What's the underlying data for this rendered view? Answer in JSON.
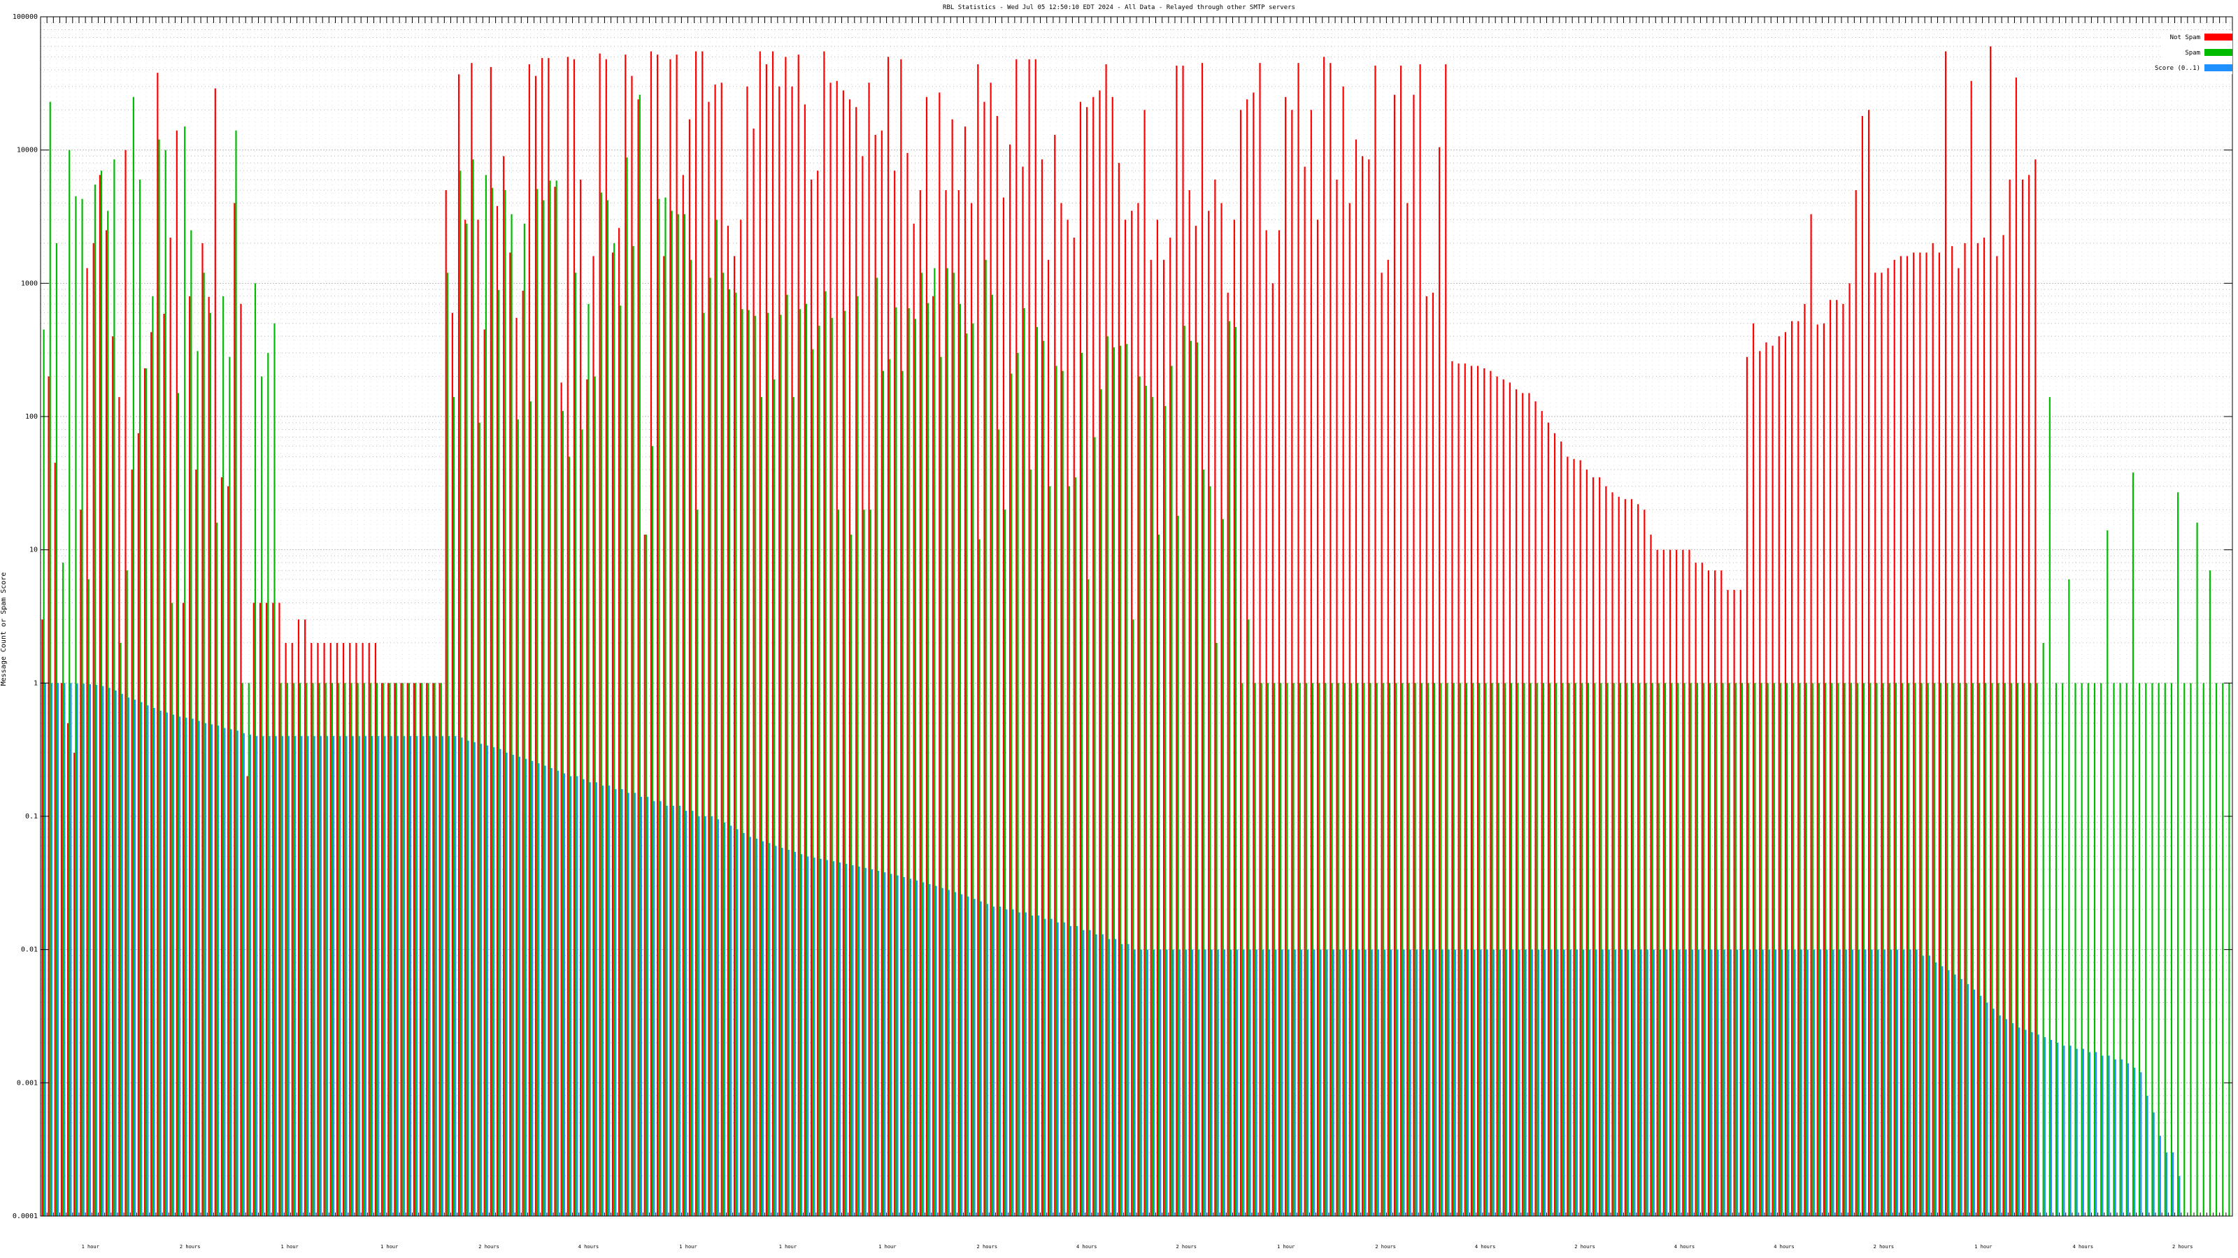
{
  "chart_data": {
    "type": "bar",
    "title": "RBL Statistics - Wed Jul 05 12:50:10 EDT 2024 - All Data - Relayed through other SMTP servers",
    "xlabel": "",
    "ylabel": "Message Count or Spam Score",
    "scale": "log",
    "ylim": [
      0.0001,
      100000
    ],
    "yticks": [
      {
        "value": 100000,
        "label": "100000"
      },
      {
        "value": 10000,
        "label": "10000"
      },
      {
        "value": 1000,
        "label": "1000"
      },
      {
        "value": 100,
        "label": "100"
      },
      {
        "value": 10,
        "label": "10"
      },
      {
        "value": 1,
        "label": "1"
      },
      {
        "value": 0.1,
        "label": "0.1"
      },
      {
        "value": 0.01,
        "label": "0.01"
      },
      {
        "value": 0.001,
        "label": "0.001"
      },
      {
        "value": 0.0001,
        "label": "0.0001"
      }
    ],
    "grid": true,
    "legend_position": "top-right",
    "series": [
      {
        "name": "Not Spam",
        "color": "#ff0000",
        "values": [
          3,
          200,
          45,
          1,
          0.5,
          0.3,
          20,
          1300,
          2000,
          6500,
          2500,
          400,
          140,
          10000,
          40,
          75,
          230,
          430,
          38000,
          590,
          2200,
          14000,
          4,
          800,
          40,
          2000,
          790,
          29000,
          35,
          30,
          4000,
          700,
          0.2,
          4,
          4,
          4,
          4,
          4,
          2,
          2,
          3,
          3,
          2,
          2,
          2,
          2,
          2,
          2,
          2,
          2,
          2,
          2,
          2,
          1,
          1,
          1,
          1,
          1,
          1,
          1,
          1,
          1,
          1,
          5000,
          600,
          37000,
          3000,
          45000,
          3000,
          450,
          42000,
          3800,
          9000,
          1700,
          550,
          880,
          44000,
          36000,
          49000,
          49000,
          5300,
          180,
          50000,
          48000,
          6000,
          190,
          1600,
          53000,
          48000,
          1700,
          2600,
          52000,
          36000,
          24000,
          13,
          55000,
          52000,
          1600,
          48000,
          52000,
          6500,
          17000,
          55000,
          55000,
          23000,
          31000,
          32000,
          2700,
          1600,
          3000,
          30000,
          14500,
          55000,
          44000,
          55000,
          30000,
          50000,
          30000,
          52000,
          22000,
          6000,
          7000,
          55000,
          32000,
          33000,
          28000,
          24000,
          21000,
          9000,
          32000,
          13000,
          14000,
          50000,
          7000,
          48000,
          9500,
          2800,
          5000,
          25000,
          800,
          27000,
          5000,
          17000,
          5000,
          15000,
          4000,
          44000,
          23000,
          32000,
          18000,
          4400,
          11000,
          48000,
          7500,
          48000,
          48000,
          8500,
          1500,
          13000,
          4000,
          3000,
          2200,
          23000,
          21000,
          25000,
          28000,
          44000,
          25000,
          8000,
          3000,
          3500,
          4000,
          20000,
          1500,
          3000,
          1500,
          2200,
          43000,
          43000,
          5000,
          2700,
          45000,
          3500,
          6000,
          4000,
          850,
          3000,
          20000,
          24000,
          27000,
          45000,
          2500,
          1000,
          2500,
          25000,
          20000,
          45000,
          7500,
          20000,
          3000,
          50000,
          45000,
          6000,
          30000,
          4000,
          12000,
          9000,
          8500,
          43000,
          1200,
          1500,
          26000,
          43000,
          4000,
          26000,
          44000,
          800,
          850,
          10500,
          44000,
          260,
          250,
          250,
          240,
          240,
          230,
          220,
          200,
          190,
          180,
          160,
          150,
          150,
          130,
          110,
          90,
          75,
          65,
          50,
          48,
          47,
          40,
          35,
          35,
          30,
          27,
          25,
          24,
          24,
          22,
          20,
          13,
          10,
          10,
          10,
          10,
          10,
          10,
          8,
          8,
          7,
          7,
          7,
          5,
          5,
          5,
          280,
          500,
          310,
          360,
          340,
          400,
          430,
          520,
          520,
          700,
          3300,
          490,
          500,
          750,
          750,
          700,
          1000,
          5000,
          18000,
          20000,
          1200,
          1200,
          1300,
          1500,
          1600,
          1600,
          1700,
          1700,
          1700,
          2000,
          1700,
          55000,
          1900,
          1300,
          2000,
          33000,
          2000,
          2200,
          60000,
          1600,
          2300,
          6000,
          35000,
          6000,
          6500,
          8500
        ]
      },
      {
        "name": "Spam",
        "color": "#00bb00",
        "values": [
          450,
          23000,
          2000,
          8,
          10000,
          4500,
          4300,
          6,
          5500,
          7000,
          3500,
          8500,
          2,
          7,
          25000,
          6000,
          230,
          800,
          12000,
          10000,
          4,
          150,
          15000,
          2500,
          310,
          1200,
          600,
          16,
          800,
          280,
          14000,
          1,
          1,
          1000,
          200,
          300,
          500,
          1,
          1,
          1,
          1,
          1,
          1,
          1,
          1,
          1,
          1,
          1,
          1,
          1,
          1,
          1,
          1,
          1,
          1,
          1,
          1,
          1,
          1,
          1,
          1,
          1,
          1,
          1200,
          140,
          7000,
          2800,
          8500,
          90,
          6500,
          5200,
          890,
          5000,
          3300,
          95,
          2800,
          130,
          5100,
          4200,
          5900,
          5900,
          110,
          50,
          1200,
          80,
          700,
          200,
          4800,
          4200,
          2000,
          680,
          8800,
          1900,
          26000,
          13,
          60,
          4300,
          4400,
          3500,
          3300,
          3300,
          1500,
          20,
          600,
          1100,
          3000,
          1200,
          900,
          850,
          640,
          630,
          570,
          140,
          600,
          190,
          580,
          820,
          140,
          640,
          700,
          320,
          480,
          870,
          550,
          20,
          620,
          13,
          800,
          20,
          20,
          1100,
          220,
          270,
          660,
          220,
          650,
          540,
          1200,
          710,
          1300,
          280,
          1300,
          1200,
          700,
          420,
          500,
          12,
          1500,
          820,
          80,
          20,
          210,
          300,
          650,
          40,
          470,
          370,
          30,
          240,
          220,
          30,
          35,
          300,
          6,
          70,
          160,
          400,
          330,
          340,
          350,
          3,
          200,
          170,
          140,
          13,
          120,
          240,
          18,
          480,
          370,
          360,
          40,
          30,
          2,
          17,
          520,
          470,
          1,
          3,
          1,
          1,
          1,
          1,
          1,
          1,
          1,
          1,
          1,
          1,
          1,
          1,
          1,
          1,
          1,
          1,
          1,
          1,
          1,
          1,
          1,
          1,
          1,
          1,
          1,
          1,
          1,
          1,
          1,
          1,
          1,
          1,
          1,
          1,
          1,
          1,
          1,
          1,
          1,
          1,
          1,
          1,
          1,
          1,
          1,
          1,
          1,
          1,
          1,
          1,
          1,
          1,
          1,
          1,
          1,
          1,
          1,
          1,
          1,
          1,
          1,
          1,
          1,
          1,
          1,
          1,
          1,
          1,
          1,
          1,
          1,
          1,
          1,
          1,
          1,
          1,
          1,
          1,
          1,
          1,
          1,
          1,
          1,
          1,
          1,
          1,
          1,
          1,
          1,
          1,
          1,
          1,
          1,
          1,
          1,
          1,
          1,
          1,
          1,
          1,
          1,
          1,
          1,
          1,
          1,
          1,
          1,
          1,
          1,
          1,
          1,
          1,
          1,
          1,
          1,
          1,
          1,
          1,
          1,
          1,
          1,
          1,
          1,
          2,
          140,
          1,
          1,
          6,
          1,
          1,
          1,
          1,
          1,
          14,
          1,
          1,
          1,
          38,
          1,
          1,
          1,
          1,
          1,
          1,
          27,
          1,
          1,
          16,
          1,
          7,
          1,
          1,
          1
        ]
      },
      {
        "name": "Score (0..1)",
        "color": "#1e90ff",
        "values": [
          1.0,
          1.0,
          1.0,
          1.0,
          1.0,
          0.99,
          0.99,
          0.98,
          0.97,
          0.95,
          0.92,
          0.88,
          0.83,
          0.78,
          0.75,
          0.72,
          0.68,
          0.65,
          0.62,
          0.6,
          0.58,
          0.56,
          0.55,
          0.54,
          0.52,
          0.5,
          0.49,
          0.48,
          0.46,
          0.45,
          0.44,
          0.42,
          0.41,
          0.4,
          0.4,
          0.4,
          0.4,
          0.4,
          0.4,
          0.4,
          0.4,
          0.4,
          0.4,
          0.4,
          0.4,
          0.4,
          0.4,
          0.4,
          0.4,
          0.4,
          0.4,
          0.4,
          0.4,
          0.4,
          0.4,
          0.4,
          0.4,
          0.4,
          0.4,
          0.4,
          0.4,
          0.4,
          0.4,
          0.4,
          0.4,
          0.39,
          0.37,
          0.36,
          0.35,
          0.34,
          0.33,
          0.32,
          0.3,
          0.29,
          0.28,
          0.27,
          0.26,
          0.25,
          0.24,
          0.23,
          0.22,
          0.21,
          0.2,
          0.2,
          0.19,
          0.18,
          0.18,
          0.17,
          0.17,
          0.16,
          0.16,
          0.15,
          0.15,
          0.14,
          0.14,
          0.13,
          0.13,
          0.12,
          0.12,
          0.12,
          0.11,
          0.11,
          0.1,
          0.1,
          0.1,
          0.095,
          0.09,
          0.085,
          0.08,
          0.075,
          0.07,
          0.068,
          0.065,
          0.063,
          0.06,
          0.058,
          0.056,
          0.054,
          0.052,
          0.05,
          0.049,
          0.048,
          0.047,
          0.046,
          0.045,
          0.044,
          0.043,
          0.042,
          0.041,
          0.04,
          0.039,
          0.038,
          0.037,
          0.036,
          0.035,
          0.034,
          0.033,
          0.032,
          0.031,
          0.03,
          0.029,
          0.028,
          0.027,
          0.026,
          0.025,
          0.024,
          0.023,
          0.022,
          0.021,
          0.021,
          0.02,
          0.02,
          0.019,
          0.019,
          0.018,
          0.018,
          0.017,
          0.017,
          0.016,
          0.016,
          0.015,
          0.015,
          0.014,
          0.014,
          0.013,
          0.013,
          0.012,
          0.012,
          0.011,
          0.011,
          0.01,
          0.01,
          0.01,
          0.01,
          0.01,
          0.01,
          0.01,
          0.01,
          0.01,
          0.01,
          0.01,
          0.01,
          0.01,
          0.01,
          0.01,
          0.01,
          0.01,
          0.01,
          0.01,
          0.01,
          0.01,
          0.01,
          0.01,
          0.01,
          0.01,
          0.01,
          0.01,
          0.01,
          0.01,
          0.01,
          0.01,
          0.01,
          0.01,
          0.01,
          0.01,
          0.01,
          0.01,
          0.01,
          0.01,
          0.01,
          0.01,
          0.01,
          0.01,
          0.01,
          0.01,
          0.01,
          0.01,
          0.01,
          0.01,
          0.01,
          0.01,
          0.01,
          0.01,
          0.01,
          0.01,
          0.01,
          0.01,
          0.01,
          0.01,
          0.01,
          0.01,
          0.01,
          0.01,
          0.01,
          0.01,
          0.01,
          0.01,
          0.01,
          0.01,
          0.01,
          0.01,
          0.01,
          0.01,
          0.01,
          0.01,
          0.01,
          0.01,
          0.01,
          0.01,
          0.01,
          0.01,
          0.01,
          0.01,
          0.01,
          0.01,
          0.01,
          0.01,
          0.01,
          0.01,
          0.01,
          0.01,
          0.01,
          0.01,
          0.01,
          0.01,
          0.01,
          0.01,
          0.01,
          0.01,
          0.01,
          0.01,
          0.01,
          0.01,
          0.01,
          0.01,
          0.01,
          0.01,
          0.01,
          0.01,
          0.01,
          0.01,
          0.01,
          0.01,
          0.01,
          0.01,
          0.01,
          0.01,
          0.01,
          0.01,
          0.01,
          0.01,
          0.01,
          0.01,
          0.009,
          0.009,
          0.008,
          0.0075,
          0.007,
          0.0065,
          0.006,
          0.0055,
          0.005,
          0.0045,
          0.004,
          0.0036,
          0.0032,
          0.003,
          0.0028,
          0.0026,
          0.0025,
          0.0024,
          0.0023,
          0.0022,
          0.0021,
          0.002,
          0.0019,
          0.0019,
          0.0018,
          0.0018,
          0.0017,
          0.0017,
          0.0016,
          0.0016,
          0.0015,
          0.0015,
          0.0014,
          0.0013,
          0.0012,
          0.0008,
          0.0006,
          0.0004,
          0.0003,
          0.0003,
          0.0002
        ]
      }
    ],
    "x_labels": [
      "1 hour",
      "2 hours",
      "1 hour",
      "1 hour",
      "2 hours",
      "4 hours",
      "1 hour",
      "1 hour",
      "1 hour",
      "2 hours",
      "4 hours",
      "2 hours",
      "1 hour",
      "2 hours",
      "4 hours",
      "2 hours",
      "4 hours",
      "4 hours",
      "2 hours",
      "1 hour",
      "4 hours",
      "2 hours"
    ]
  }
}
